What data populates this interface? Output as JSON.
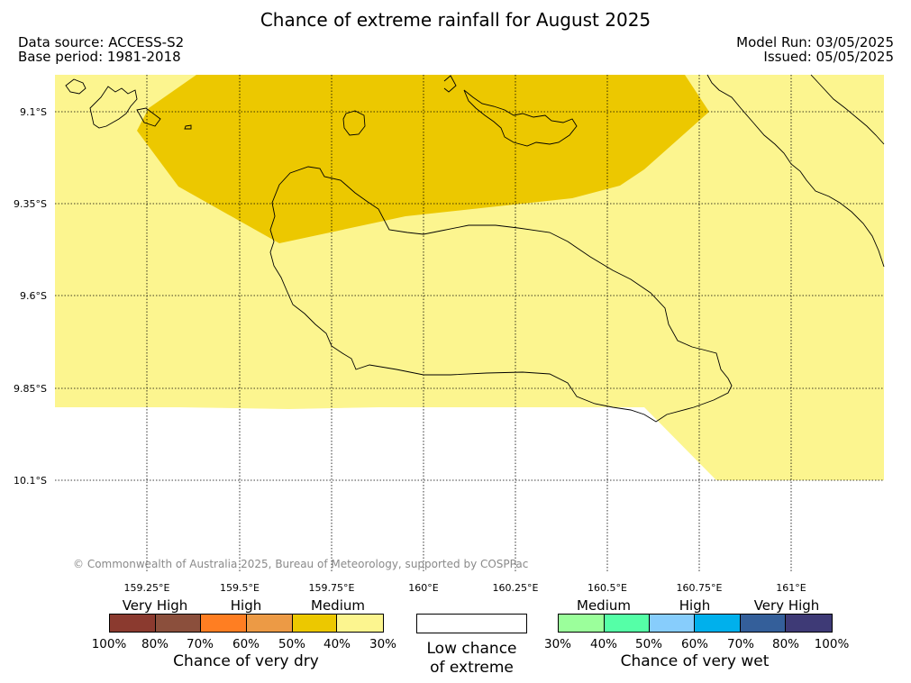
{
  "title": "Chance of extreme rainfall for August 2025",
  "data_source": "Data source: ACCESS-S2",
  "base_period": "Base period: 1981-2018",
  "model_run": "Model Run: 03/05/2025",
  "issued": "Issued: 05/05/2025",
  "copyright": "© Commonwealth of Australia 2025, Bureau of Meteorology, supported by COSPPac",
  "map": {
    "lat_labels": [
      "9.1°S",
      "9.35°S",
      "9.6°S",
      "9.85°S",
      "10.1°S"
    ],
    "lon_labels": [
      "159.25°E",
      "159.5°E",
      "159.75°E",
      "160°E",
      "160.25°E",
      "160.5°E",
      "160.75°E",
      "161°E"
    ],
    "colors": {
      "medium_dry_40_50": "#ecc800",
      "low_dry_30_40": "#fcf58f",
      "coastline": "#000000"
    }
  },
  "legend": {
    "dry": {
      "categories": [
        "Very High",
        "High",
        "Medium"
      ],
      "percent_labels": [
        "100%",
        "80%",
        "70%",
        "60%",
        "50%",
        "40%",
        "30%"
      ],
      "colors": [
        "#8b3a2f",
        "#8b4f3c",
        "#ff7e22",
        "#ec9a45",
        "#ecc800",
        "#fcf58f"
      ],
      "caption": "Chance of very dry"
    },
    "low": {
      "line1": "Low chance",
      "line2": "of extreme",
      "color": "#ffffff"
    },
    "wet": {
      "categories": [
        "Medium",
        "High",
        "Very High"
      ],
      "percent_labels": [
        "30%",
        "40%",
        "50%",
        "60%",
        "70%",
        "80%",
        "100%"
      ],
      "colors": [
        "#9bff9b",
        "#55ffa7",
        "#87cdfc",
        "#00b0ec",
        "#345f9a",
        "#3e3a76"
      ],
      "caption": "Chance of very wet"
    }
  }
}
